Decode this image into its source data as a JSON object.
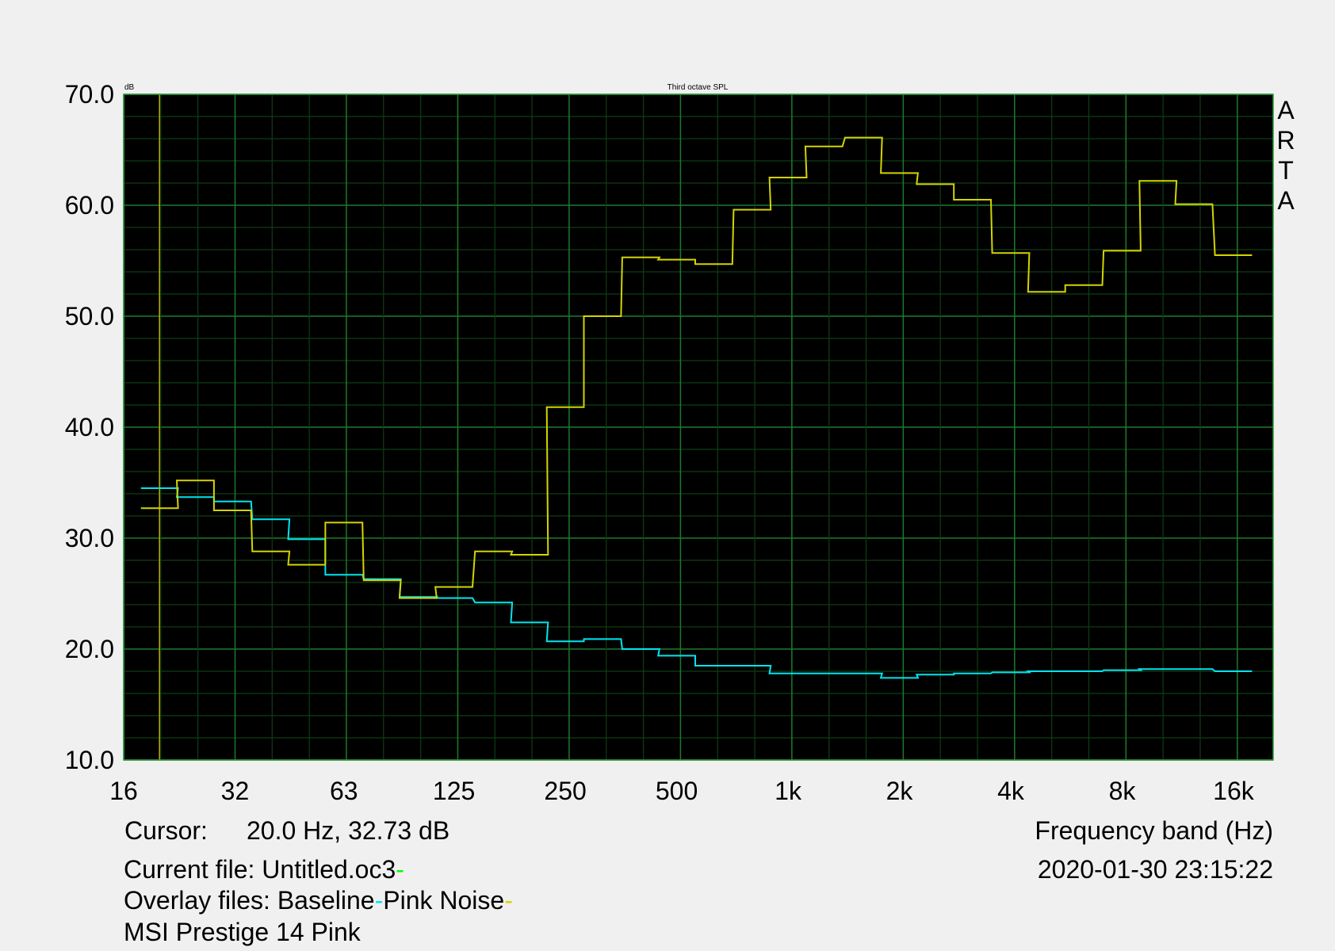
{
  "chart_data": {
    "type": "line",
    "step": true,
    "title": "Third octave SPL",
    "ylabel": "dB",
    "xlabel": "Frequency band (Hz)",
    "x_scale": "log",
    "xlim": [
      16,
      20480
    ],
    "ylim": [
      10,
      70
    ],
    "grid": true,
    "x_ticks": [
      "16",
      "32",
      "63",
      "125",
      "250",
      "500",
      "1k",
      "2k",
      "4k",
      "8k",
      "16k"
    ],
    "x_tick_values": [
      16,
      32,
      63,
      125,
      250,
      500,
      1000,
      2000,
      4000,
      8000,
      16000
    ],
    "y_ticks": [
      "70.0",
      "60.0",
      "50.0",
      "40.0",
      "30.0",
      "20.0",
      "10.0"
    ],
    "y_tick_values": [
      70,
      60,
      50,
      40,
      30,
      20,
      10
    ],
    "x": [
      20,
      25,
      31.5,
      40,
      50,
      63,
      80,
      100,
      125,
      160,
      200,
      250,
      315,
      400,
      500,
      630,
      800,
      1000,
      1250,
      1600,
      2000,
      2500,
      3150,
      4000,
      5000,
      6300,
      8000,
      10000,
      12500,
      16000
    ],
    "series": [
      {
        "name": "Baseline",
        "color": "#00e5ee",
        "values": [
          34.5,
          33.7,
          33.3,
          31.7,
          29.9,
          26.7,
          26.3,
          24.7,
          24.6,
          24.2,
          22.4,
          20.7,
          20.9,
          20.0,
          19.4,
          18.5,
          18.5,
          17.8,
          17.8,
          17.8,
          17.4,
          17.7,
          17.8,
          17.9,
          18.0,
          18.0,
          18.1,
          18.2,
          18.2,
          18.0
        ]
      },
      {
        "name": "Pink Noise",
        "color": "#d4d400",
        "values": [
          32.7,
          35.2,
          32.5,
          28.8,
          27.6,
          31.4,
          26.2,
          24.6,
          25.6,
          28.8,
          28.5,
          41.8,
          50.0,
          55.3,
          55.1,
          54.7,
          59.6,
          62.5,
          65.3,
          66.1,
          62.9,
          61.9,
          60.5,
          55.7,
          52.2,
          52.8,
          55.9,
          62.2,
          60.1,
          55.5
        ]
      }
    ],
    "cursor": {
      "frequency_hz": 20.0,
      "level_db": 32.73,
      "color": "#b8b000"
    },
    "colors": {
      "plot_bg": "#000000",
      "grid_major": "#1f7a2a",
      "grid_minor": "#0f3d15",
      "page_bg": "#f0f0f0",
      "current_file_marker": "#00ff00"
    }
  },
  "info": {
    "cursor_label": "Cursor:",
    "cursor_value": "20.0 Hz, 32.73 dB",
    "current_file": "Current file: Untitled.oc3",
    "overlay_label": "Overlay files: Baseline",
    "overlay_second": "Pink Noise",
    "description": "MSI Prestige 14 Pink",
    "datetime": "2020-01-30  23:15:22",
    "marker": "-"
  },
  "logo": {
    "letters": [
      "A",
      "R",
      "T",
      "A"
    ]
  }
}
